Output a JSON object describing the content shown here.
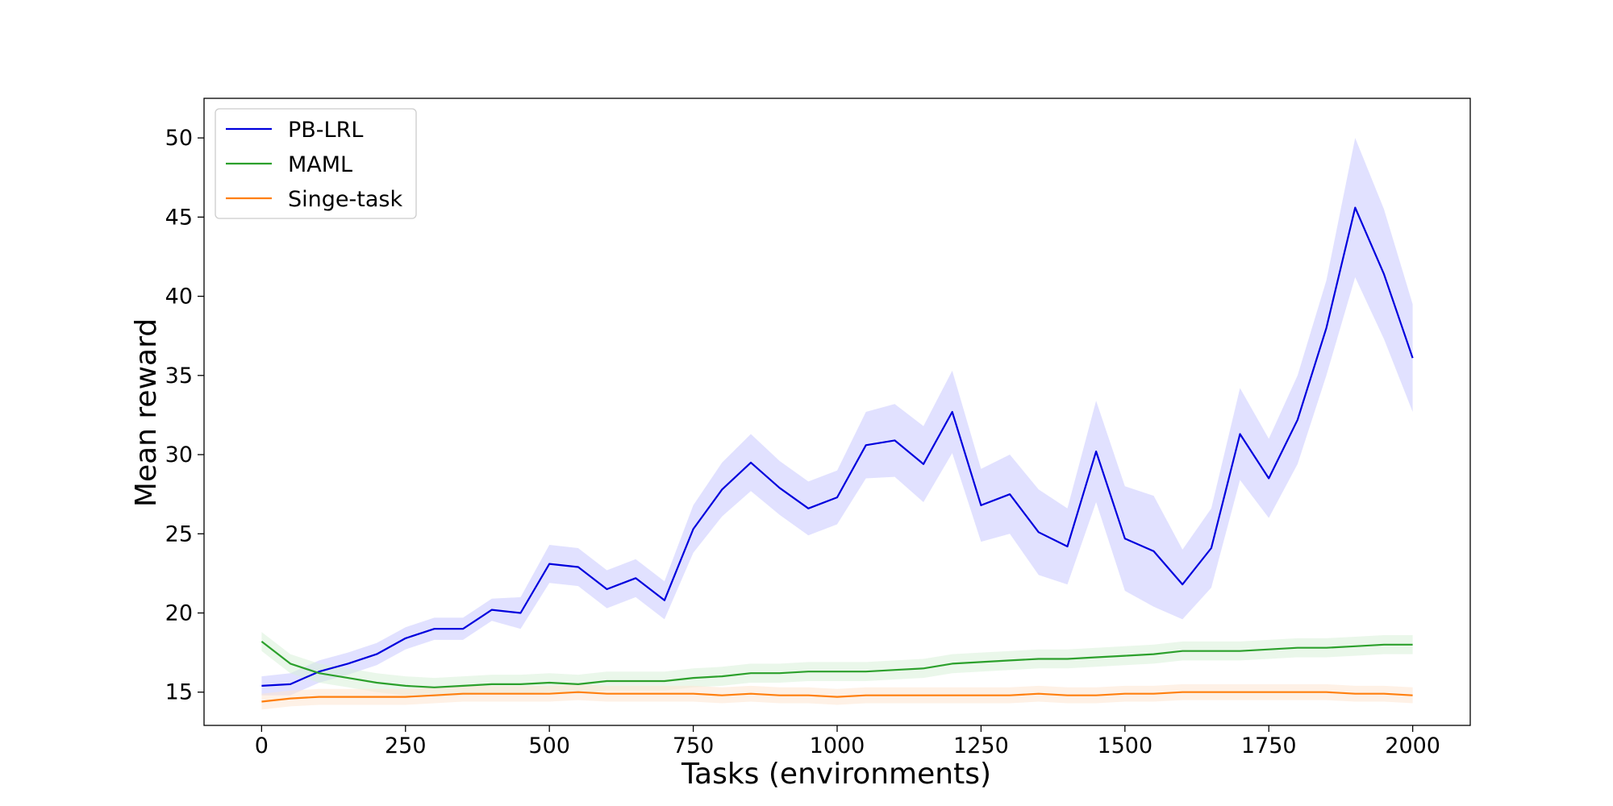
{
  "chart_data": {
    "type": "line",
    "title": "",
    "xlabel": "Tasks (environments)",
    "ylabel": "Mean reward",
    "xlim": [
      -100,
      2100
    ],
    "ylim": [
      12.9,
      52.5
    ],
    "xticks": [
      0,
      250,
      500,
      750,
      1000,
      1250,
      1500,
      1750,
      2000
    ],
    "yticks": [
      15,
      20,
      25,
      30,
      35,
      40,
      45,
      50
    ],
    "grid": false,
    "legend_position": "top-left",
    "series": [
      {
        "name": "PB-LRL",
        "color": "#0000dd",
        "band_color": "#c8c8ff",
        "x": [
          0,
          50,
          100,
          150,
          200,
          250,
          300,
          350,
          400,
          450,
          500,
          550,
          600,
          650,
          700,
          750,
          800,
          850,
          900,
          950,
          1000,
          1050,
          1100,
          1150,
          1200,
          1250,
          1300,
          1350,
          1400,
          1450,
          1500,
          1550,
          1600,
          1650,
          1700,
          1750,
          1800,
          1850,
          1900,
          1950,
          2000
        ],
        "values": [
          15.4,
          15.5,
          16.3,
          16.8,
          17.4,
          18.4,
          19.0,
          19.0,
          20.2,
          20.0,
          23.1,
          22.9,
          21.5,
          22.2,
          20.8,
          25.3,
          27.8,
          29.5,
          27.9,
          26.6,
          27.3,
          30.6,
          30.9,
          29.4,
          32.7,
          26.8,
          27.5,
          25.1,
          24.2,
          30.2,
          24.7,
          23.9,
          21.8,
          24.1,
          31.3,
          28.5,
          32.2,
          38.0,
          45.6,
          41.4,
          36.1
        ],
        "band_upper": [
          16.0,
          16.2,
          17.0,
          17.5,
          18.1,
          19.1,
          19.7,
          19.7,
          20.9,
          21.0,
          24.3,
          24.1,
          22.7,
          23.4,
          22.0,
          26.8,
          29.5,
          31.3,
          29.6,
          28.3,
          29.0,
          32.7,
          33.2,
          31.8,
          35.3,
          29.1,
          30.0,
          27.8,
          26.6,
          33.4,
          28.0,
          27.4,
          24.0,
          26.6,
          34.2,
          31.0,
          35.0,
          41.0,
          50.0,
          45.5,
          39.5
        ],
        "band_lower": [
          14.8,
          14.8,
          15.6,
          16.1,
          16.7,
          17.7,
          18.3,
          18.3,
          19.5,
          19.0,
          21.9,
          21.7,
          20.3,
          21.0,
          19.6,
          23.8,
          26.1,
          27.7,
          26.2,
          24.9,
          25.6,
          28.5,
          28.6,
          27.0,
          30.1,
          24.5,
          25.0,
          22.4,
          21.8,
          27.0,
          21.4,
          20.4,
          19.6,
          21.6,
          28.4,
          26.0,
          29.4,
          35.0,
          41.2,
          37.3,
          32.7
        ]
      },
      {
        "name": "MAML",
        "color": "#2ca02c",
        "band_color": "#d8f0d8",
        "x": [
          0,
          50,
          100,
          150,
          200,
          250,
          300,
          350,
          400,
          450,
          500,
          550,
          600,
          650,
          700,
          750,
          800,
          850,
          900,
          950,
          1000,
          1050,
          1100,
          1150,
          1200,
          1250,
          1300,
          1350,
          1400,
          1450,
          1500,
          1550,
          1600,
          1650,
          1700,
          1750,
          1800,
          1850,
          1900,
          1950,
          2000
        ],
        "values": [
          18.2,
          16.8,
          16.2,
          15.9,
          15.6,
          15.4,
          15.3,
          15.4,
          15.5,
          15.5,
          15.6,
          15.5,
          15.7,
          15.7,
          15.7,
          15.9,
          16.0,
          16.2,
          16.2,
          16.3,
          16.3,
          16.3,
          16.4,
          16.5,
          16.8,
          16.9,
          17.0,
          17.1,
          17.1,
          17.2,
          17.3,
          17.4,
          17.6,
          17.6,
          17.6,
          17.7,
          17.8,
          17.8,
          17.9,
          18.0,
          18.0
        ],
        "band_upper": [
          18.8,
          17.4,
          16.8,
          16.5,
          16.2,
          16.0,
          15.9,
          16.0,
          16.1,
          16.1,
          16.2,
          16.1,
          16.3,
          16.3,
          16.3,
          16.5,
          16.6,
          16.8,
          16.8,
          16.9,
          16.9,
          16.9,
          17.0,
          17.1,
          17.4,
          17.5,
          17.6,
          17.7,
          17.7,
          17.8,
          17.9,
          18.0,
          18.2,
          18.2,
          18.2,
          18.3,
          18.4,
          18.4,
          18.5,
          18.6,
          18.6
        ],
        "band_lower": [
          17.6,
          16.2,
          15.6,
          15.3,
          15.0,
          14.8,
          14.7,
          14.8,
          14.9,
          14.9,
          15.0,
          14.9,
          15.1,
          15.1,
          15.1,
          15.3,
          15.4,
          15.6,
          15.6,
          15.7,
          15.7,
          15.7,
          15.8,
          15.9,
          16.2,
          16.3,
          16.4,
          16.5,
          16.5,
          16.6,
          16.7,
          16.8,
          17.0,
          17.0,
          17.0,
          17.1,
          17.2,
          17.2,
          17.3,
          17.4,
          17.4
        ]
      },
      {
        "name": "Singe-task",
        "color": "#ff7f0e",
        "band_color": "#fde6d2",
        "x": [
          0,
          50,
          100,
          150,
          200,
          250,
          300,
          350,
          400,
          450,
          500,
          550,
          600,
          650,
          700,
          750,
          800,
          850,
          900,
          950,
          1000,
          1050,
          1100,
          1150,
          1200,
          1250,
          1300,
          1350,
          1400,
          1450,
          1500,
          1550,
          1600,
          1650,
          1700,
          1750,
          1800,
          1850,
          1900,
          1950,
          2000
        ],
        "values": [
          14.4,
          14.6,
          14.7,
          14.7,
          14.7,
          14.7,
          14.8,
          14.9,
          14.9,
          14.9,
          14.9,
          15.0,
          14.9,
          14.9,
          14.9,
          14.9,
          14.8,
          14.9,
          14.8,
          14.8,
          14.7,
          14.8,
          14.8,
          14.8,
          14.8,
          14.8,
          14.8,
          14.9,
          14.8,
          14.8,
          14.9,
          14.9,
          15.0,
          15.0,
          15.0,
          15.0,
          15.0,
          15.0,
          14.9,
          14.9,
          14.8
        ],
        "band_upper": [
          14.9,
          15.1,
          15.2,
          15.2,
          15.2,
          15.2,
          15.3,
          15.4,
          15.4,
          15.4,
          15.4,
          15.5,
          15.4,
          15.4,
          15.4,
          15.4,
          15.3,
          15.4,
          15.3,
          15.3,
          15.2,
          15.3,
          15.3,
          15.3,
          15.3,
          15.3,
          15.3,
          15.4,
          15.3,
          15.3,
          15.4,
          15.4,
          15.5,
          15.5,
          15.5,
          15.5,
          15.5,
          15.5,
          15.4,
          15.4,
          15.3
        ],
        "band_lower": [
          13.9,
          14.1,
          14.2,
          14.2,
          14.2,
          14.2,
          14.3,
          14.4,
          14.4,
          14.4,
          14.4,
          14.5,
          14.4,
          14.4,
          14.4,
          14.4,
          14.3,
          14.4,
          14.3,
          14.3,
          14.2,
          14.3,
          14.3,
          14.3,
          14.3,
          14.3,
          14.3,
          14.4,
          14.3,
          14.3,
          14.4,
          14.4,
          14.5,
          14.5,
          14.5,
          14.5,
          14.5,
          14.5,
          14.4,
          14.4,
          14.3
        ]
      }
    ]
  }
}
